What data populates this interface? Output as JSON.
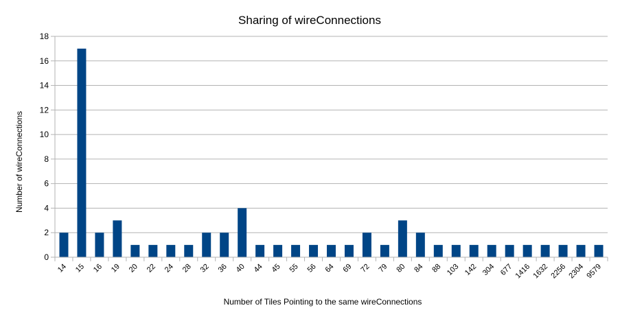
{
  "chart_data": {
    "type": "bar",
    "title": "Sharing of wireConnections",
    "xlabel": "Number of Tiles Pointing to the same wireConnections",
    "ylabel": "Number of wireConnections",
    "ylim": [
      0,
      18
    ],
    "yticks": [
      0,
      2,
      4,
      6,
      8,
      10,
      12,
      14,
      16,
      18
    ],
    "grid": true,
    "legend": "none",
    "categories": [
      "14",
      "15",
      "16",
      "19",
      "20",
      "22",
      "24",
      "28",
      "32",
      "36",
      "40",
      "44",
      "45",
      "55",
      "56",
      "64",
      "69",
      "72",
      "79",
      "80",
      "84",
      "88",
      "103",
      "142",
      "304",
      "677",
      "1416",
      "1632",
      "2256",
      "2304",
      "9579"
    ],
    "values": [
      2,
      17,
      2,
      3,
      1,
      1,
      1,
      1,
      2,
      2,
      4,
      1,
      1,
      1,
      1,
      1,
      1,
      2,
      1,
      3,
      2,
      1,
      1,
      1,
      1,
      1,
      1,
      1,
      1,
      1,
      1
    ],
    "bar_color": "#004586"
  }
}
